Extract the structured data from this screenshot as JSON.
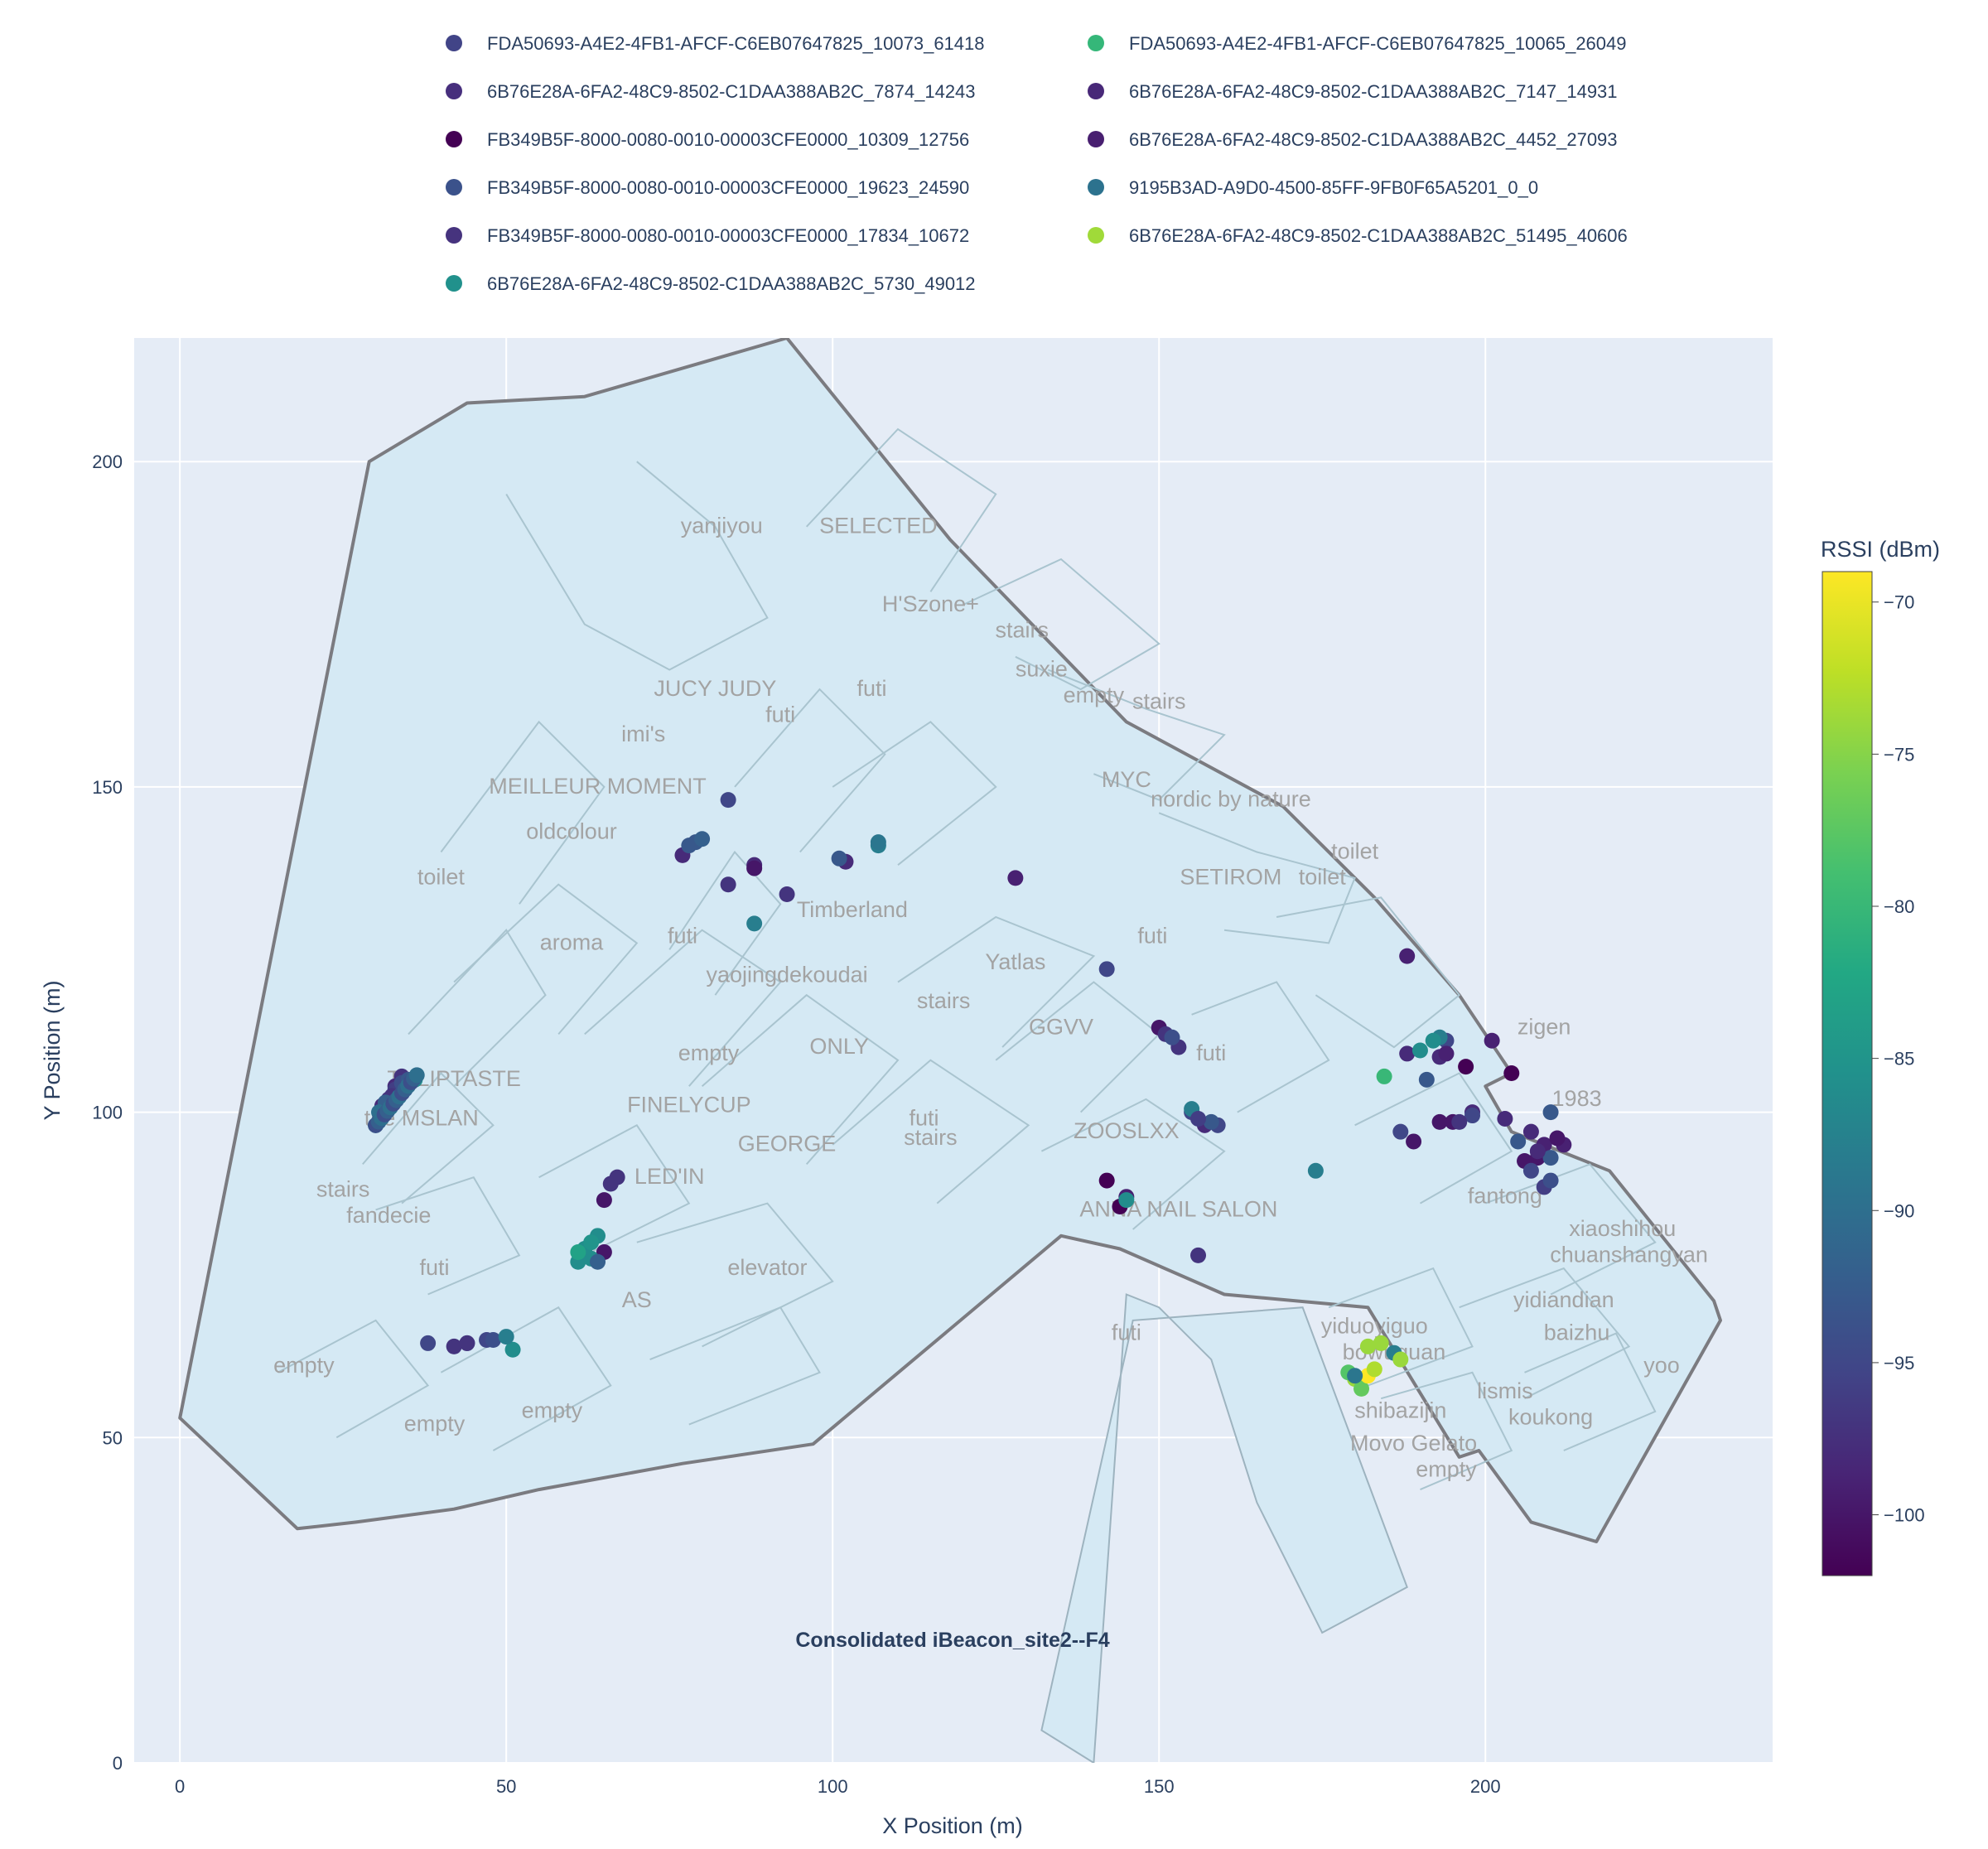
{
  "chart_data": {
    "type": "scatter",
    "title": "Consolidated iBeacon_site2--F4",
    "xlabel": "X Position (m)",
    "ylabel": "Y Position (m)",
    "xlim": [
      -7,
      244
    ],
    "ylim": [
      0,
      219
    ],
    "xticks": [
      0,
      50,
      100,
      150,
      200
    ],
    "yticks": [
      0,
      50,
      100,
      150,
      200
    ],
    "grid": true,
    "legend_position": "top",
    "colorbar": {
      "title": "RSSI (dBm)",
      "range": [
        -102,
        -69
      ],
      "ticks": [
        -70,
        -75,
        -80,
        -85,
        -90,
        -95,
        -100
      ],
      "colorscale": "Viridis"
    },
    "floorplan_labels": [
      {
        "text": "yanjiyou",
        "x": 83,
        "y": 189
      },
      {
        "text": "SELECTED",
        "x": 107,
        "y": 189
      },
      {
        "text": "H'Szone+",
        "x": 115,
        "y": 177
      },
      {
        "text": "stairs",
        "x": 129,
        "y": 173
      },
      {
        "text": "suxie",
        "x": 132,
        "y": 167
      },
      {
        "text": "empty",
        "x": 140,
        "y": 163
      },
      {
        "text": "stairs",
        "x": 150,
        "y": 162
      },
      {
        "text": "JUCY JUDY",
        "x": 82,
        "y": 164
      },
      {
        "text": "futi",
        "x": 106,
        "y": 164
      },
      {
        "text": "futi",
        "x": 92,
        "y": 160
      },
      {
        "text": "imi's",
        "x": 71,
        "y": 157
      },
      {
        "text": "MYC",
        "x": 145,
        "y": 150
      },
      {
        "text": "MEILLEUR MOMENT",
        "x": 64,
        "y": 149
      },
      {
        "text": "nordic by nature",
        "x": 161,
        "y": 147
      },
      {
        "text": "oldcolour",
        "x": 60,
        "y": 142
      },
      {
        "text": "toilet",
        "x": 180,
        "y": 139
      },
      {
        "text": "toilet",
        "x": 40,
        "y": 135
      },
      {
        "text": "SETIROM",
        "x": 161,
        "y": 135
      },
      {
        "text": "toilet",
        "x": 175,
        "y": 135
      },
      {
        "text": "Timberland",
        "x": 103,
        "y": 130
      },
      {
        "text": "aroma",
        "x": 60,
        "y": 125
      },
      {
        "text": "futi",
        "x": 77,
        "y": 126
      },
      {
        "text": "futi",
        "x": 149,
        "y": 126
      },
      {
        "text": "Yatlas",
        "x": 128,
        "y": 122
      },
      {
        "text": "yaojingdekoudai",
        "x": 93,
        "y": 120
      },
      {
        "text": "stairs",
        "x": 117,
        "y": 116
      },
      {
        "text": "GGVV",
        "x": 135,
        "y": 112
      },
      {
        "text": "empty",
        "x": 81,
        "y": 108
      },
      {
        "text": "ONLY",
        "x": 101,
        "y": 109
      },
      {
        "text": "futi",
        "x": 158,
        "y": 108
      },
      {
        "text": "zigen",
        "x": 209,
        "y": 112
      },
      {
        "text": "TULIPTASTE",
        "x": 42,
        "y": 104
      },
      {
        "text": "FINELYCUP",
        "x": 78,
        "y": 100
      },
      {
        "text": "1983",
        "x": 214,
        "y": 101
      },
      {
        "text": "the MSLAN",
        "x": 37,
        "y": 98
      },
      {
        "text": "futi",
        "x": 114,
        "y": 98
      },
      {
        "text": "ZOOSLXX",
        "x": 145,
        "y": 96
      },
      {
        "text": "stairs",
        "x": 115,
        "y": 95
      },
      {
        "text": "GEORGE",
        "x": 93,
        "y": 94
      },
      {
        "text": "LED'IN",
        "x": 75,
        "y": 89
      },
      {
        "text": "stairs",
        "x": 25,
        "y": 87
      },
      {
        "text": "fantong",
        "x": 203,
        "y": 86
      },
      {
        "text": "ANNA NAIL SALON",
        "x": 153,
        "y": 84
      },
      {
        "text": "fandecie",
        "x": 32,
        "y": 83
      },
      {
        "text": "xiaoshihou",
        "x": 221,
        "y": 81
      },
      {
        "text": "chuanshangyan",
        "x": 222,
        "y": 77
      },
      {
        "text": "futi",
        "x": 39,
        "y": 75
      },
      {
        "text": "elevator",
        "x": 90,
        "y": 75
      },
      {
        "text": "AS",
        "x": 70,
        "y": 70
      },
      {
        "text": "yidiandian",
        "x": 212,
        "y": 70
      },
      {
        "text": "yiduoyiguo",
        "x": 183,
        "y": 66
      },
      {
        "text": "baizhu",
        "x": 214,
        "y": 65
      },
      {
        "text": "futi",
        "x": 145,
        "y": 65
      },
      {
        "text": "bowuguan",
        "x": 186,
        "y": 62
      },
      {
        "text": "yoo",
        "x": 227,
        "y": 60
      },
      {
        "text": "empty",
        "x": 19,
        "y": 60
      },
      {
        "text": "lismis",
        "x": 203,
        "y": 56
      },
      {
        "text": "empty",
        "x": 57,
        "y": 53
      },
      {
        "text": "shibazijin",
        "x": 187,
        "y": 53
      },
      {
        "text": "empty",
        "x": 39,
        "y": 51
      },
      {
        "text": "koukong",
        "x": 210,
        "y": 52
      },
      {
        "text": "Movo Gelato",
        "x": 189,
        "y": 48
      },
      {
        "text": "empty",
        "x": 194,
        "y": 44
      }
    ],
    "series": [
      {
        "name": "FDA50693-A4E2-4FB1-AFCF-C6EB07647825_10073_61418",
        "color": "#414487",
        "rssi": -95,
        "x": [
          38,
          44,
          47,
          84,
          142,
          155,
          159,
          187,
          194
        ],
        "y": [
          64.5,
          64.5,
          65,
          148,
          122,
          100,
          98,
          97,
          111
        ]
      },
      {
        "name": "FDA50693-A4E2-4FB1-AFCF-C6EB07647825_10065_26049",
        "color": "#35b779",
        "rssi": -80,
        "x": [
          184.5
        ],
        "y": [
          105.5
        ]
      },
      {
        "name": "6B76E28A-6FA2-48C9-8502-C1DAA388AB2C_7874_14243",
        "color": "#472f7d",
        "rssi": -98,
        "x": [
          31,
          33,
          77,
          88,
          102,
          157,
          188,
          193,
          198,
          203,
          207
        ],
        "y": [
          101,
          104,
          139.5,
          138,
          138.5,
          98,
          109,
          108.5,
          100,
          99,
          97
        ]
      },
      {
        "name": "6B76E28A-6FA2-48C9-8502-C1DAA388AB2C_7147_14931",
        "color": "#482878",
        "rssi": -99,
        "x": [
          128,
          145,
          188,
          194,
          201,
          209,
          212
        ],
        "y": [
          136,
          87,
          124,
          109,
          111,
          95,
          95
        ]
      },
      {
        "name": "FB349B5F-8000-0080-0010-00003CFE0000_10309_12756",
        "color": "#440154",
        "rssi": -102,
        "x": [
          142,
          144,
          197,
          204
        ],
        "y": [
          89.5,
          85.5,
          107,
          106
        ]
      },
      {
        "name": "6B76E28A-6FA2-48C9-8502-C1DAA388AB2C_4452_27093",
        "color": "#481f70",
        "rssi": -100,
        "x": [
          65,
          65,
          88,
          150,
          189,
          193,
          195,
          206,
          208,
          211
        ],
        "y": [
          86.5,
          78.5,
          137.5,
          113,
          95.5,
          98.5,
          98.5,
          92.5,
          93,
          96
        ]
      },
      {
        "name": "FB349B5F-8000-0080-0010-00003CFE0000_19623_24590",
        "color": "#3b528b",
        "rssi": -93,
        "x": [
          79,
          101,
          158,
          191,
          210,
          210
        ],
        "y": [
          141.5,
          139,
          98.5,
          105,
          100,
          93
        ]
      },
      {
        "name": "9195B3AD-A9D0-4500-85FF-9FB0F65A5201_0_0",
        "color": "#2c728e",
        "rssi": -88,
        "x": [
          88,
          107,
          155,
          174,
          186,
          193
        ],
        "y": [
          129,
          141,
          100.5,
          91,
          63,
          111.5
        ]
      },
      {
        "name": "FB349B5F-8000-0080-0010-00003CFE0000_17834_10672",
        "color": "#46337e",
        "rssi": -97,
        "x": [
          32,
          34,
          42,
          44,
          66,
          67,
          84,
          93,
          151,
          153,
          156
        ],
        "y": [
          102,
          105.5,
          64,
          64.5,
          89,
          90,
          135,
          133.5,
          112,
          110,
          78
        ]
      },
      {
        "name": "6B76E28A-6FA2-48C9-8502-C1DAA388AB2C_51495_40606",
        "color": "#a0da39",
        "rssi": -74,
        "x": [
          180,
          182,
          184,
          187
        ],
        "y": [
          59,
          64,
          64.5,
          62
        ]
      },
      {
        "name": "6B76E28A-6FA2-48C9-8502-C1DAA388AB2C_5730_49012",
        "color": "#21918c",
        "rssi": -86,
        "x": [
          30,
          31,
          36,
          51,
          61,
          62,
          64,
          63,
          145,
          190
        ],
        "y": [
          98,
          99.5,
          105,
          63.5,
          77,
          79,
          81,
          77.5,
          86.5,
          109.5
        ]
      }
    ],
    "extra_points": [
      {
        "x": 33,
        "y": 103.5,
        "rssi": -96
      },
      {
        "x": 34,
        "y": 104.5,
        "rssi": -94
      },
      {
        "x": 35,
        "y": 105,
        "rssi": -93
      },
      {
        "x": 32.5,
        "y": 102.5,
        "rssi": -97
      },
      {
        "x": 31.5,
        "y": 101.5,
        "rssi": -92
      },
      {
        "x": 30.5,
        "y": 100,
        "rssi": -90
      },
      {
        "x": 48,
        "y": 65,
        "rssi": -94
      },
      {
        "x": 50,
        "y": 65.5,
        "rssi": -88
      },
      {
        "x": 61,
        "y": 78.5,
        "rssi": -83
      },
      {
        "x": 63,
        "y": 80,
        "rssi": -85
      },
      {
        "x": 64,
        "y": 77,
        "rssi": -92
      },
      {
        "x": 78,
        "y": 141,
        "rssi": -93
      },
      {
        "x": 80,
        "y": 142,
        "rssi": -92
      },
      {
        "x": 107,
        "y": 141.5,
        "rssi": -89
      },
      {
        "x": 152,
        "y": 111.5,
        "rssi": -94
      },
      {
        "x": 156,
        "y": 99,
        "rssi": -96
      },
      {
        "x": 192,
        "y": 111,
        "rssi": -86
      },
      {
        "x": 198,
        "y": 99.5,
        "rssi": -95
      },
      {
        "x": 205,
        "y": 95.5,
        "rssi": -93
      },
      {
        "x": 207,
        "y": 91,
        "rssi": -95
      },
      {
        "x": 209,
        "y": 88.5,
        "rssi": -96
      },
      {
        "x": 210,
        "y": 89.5,
        "rssi": -94
      },
      {
        "x": 196,
        "y": 98.5,
        "rssi": -97
      },
      {
        "x": 208,
        "y": 94,
        "rssi": -98
      },
      {
        "x": 181,
        "y": 57.5,
        "rssi": -77
      },
      {
        "x": 182,
        "y": 59.5,
        "rssi": -69
      },
      {
        "x": 183,
        "y": 60.5,
        "rssi": -73
      },
      {
        "x": 179,
        "y": 60,
        "rssi": -78
      },
      {
        "x": 180,
        "y": 59.5,
        "rssi": -89
      }
    ]
  }
}
